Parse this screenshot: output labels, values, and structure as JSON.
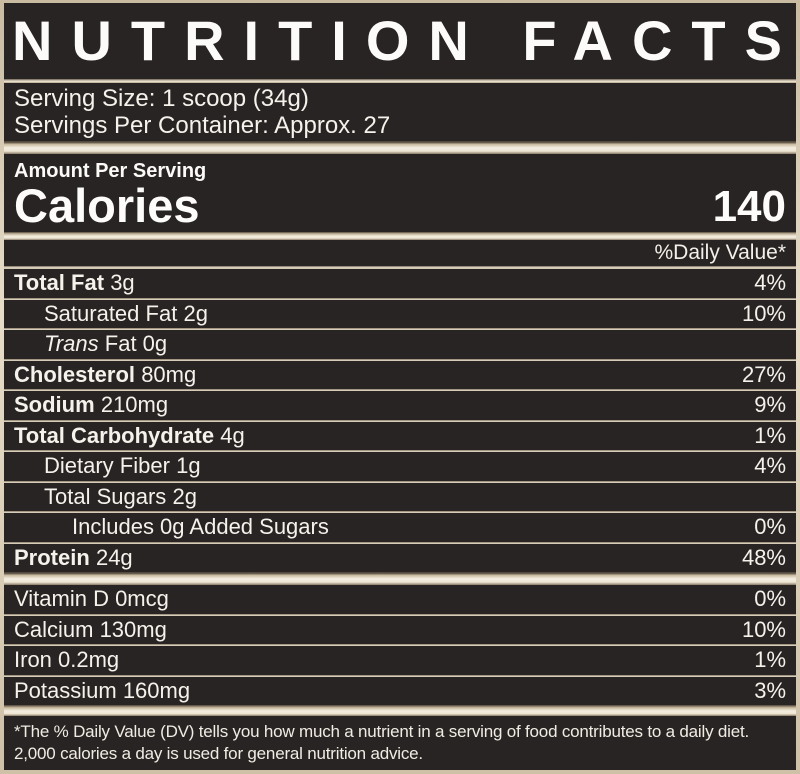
{
  "colors": {
    "panel_background": "#282423",
    "divider_champagne": "#f2ebdc",
    "divider_edge": "#6e6253",
    "text": "#f7f4ee"
  },
  "title": "NUTRITION FACTS",
  "serving": {
    "size": "Serving Size: 1 scoop (34g)",
    "per_container": "Servings Per Container: Approx. 27"
  },
  "calories": {
    "header": "Amount Per Serving",
    "label": "Calories",
    "value": "140"
  },
  "daily_value_header": "%Daily Value*",
  "nutrients": [
    {
      "name": "Total Fat",
      "amount": "3g",
      "dv": "4%"
    },
    {
      "name": "Saturated Fat",
      "amount": "2g",
      "dv": "10%"
    },
    {
      "name": "Trans",
      "amount": "Fat 0g",
      "dv": ""
    },
    {
      "name": "Cholesterol",
      "amount": "80mg",
      "dv": "27%"
    },
    {
      "name": "Sodium",
      "amount": "210mg",
      "dv": "9%"
    },
    {
      "name": "Total Carbohydrate",
      "amount": "4g",
      "dv": "1%"
    },
    {
      "name": "Dietary Fiber",
      "amount": "1g",
      "dv": "4%"
    },
    {
      "name": "Total Sugars",
      "amount": "2g",
      "dv": ""
    },
    {
      "name": "Includes 0g Added Sugars",
      "amount": "",
      "dv": "0%"
    },
    {
      "name": "Protein",
      "amount": "24g",
      "dv": "48%"
    }
  ],
  "vitamins": [
    {
      "name": "Vitamin D 0mcg",
      "dv": "0%"
    },
    {
      "name": "Calcium 130mg",
      "dv": "10%"
    },
    {
      "name": "Iron 0.2mg",
      "dv": "1%"
    },
    {
      "name": "Potassium 160mg",
      "dv": "3%"
    }
  ],
  "footnote": "*The % Daily Value (DV) tells you how much a nutrient in a serving of food contributes to a daily diet. 2,000 calories a day is used for general nutrition advice."
}
